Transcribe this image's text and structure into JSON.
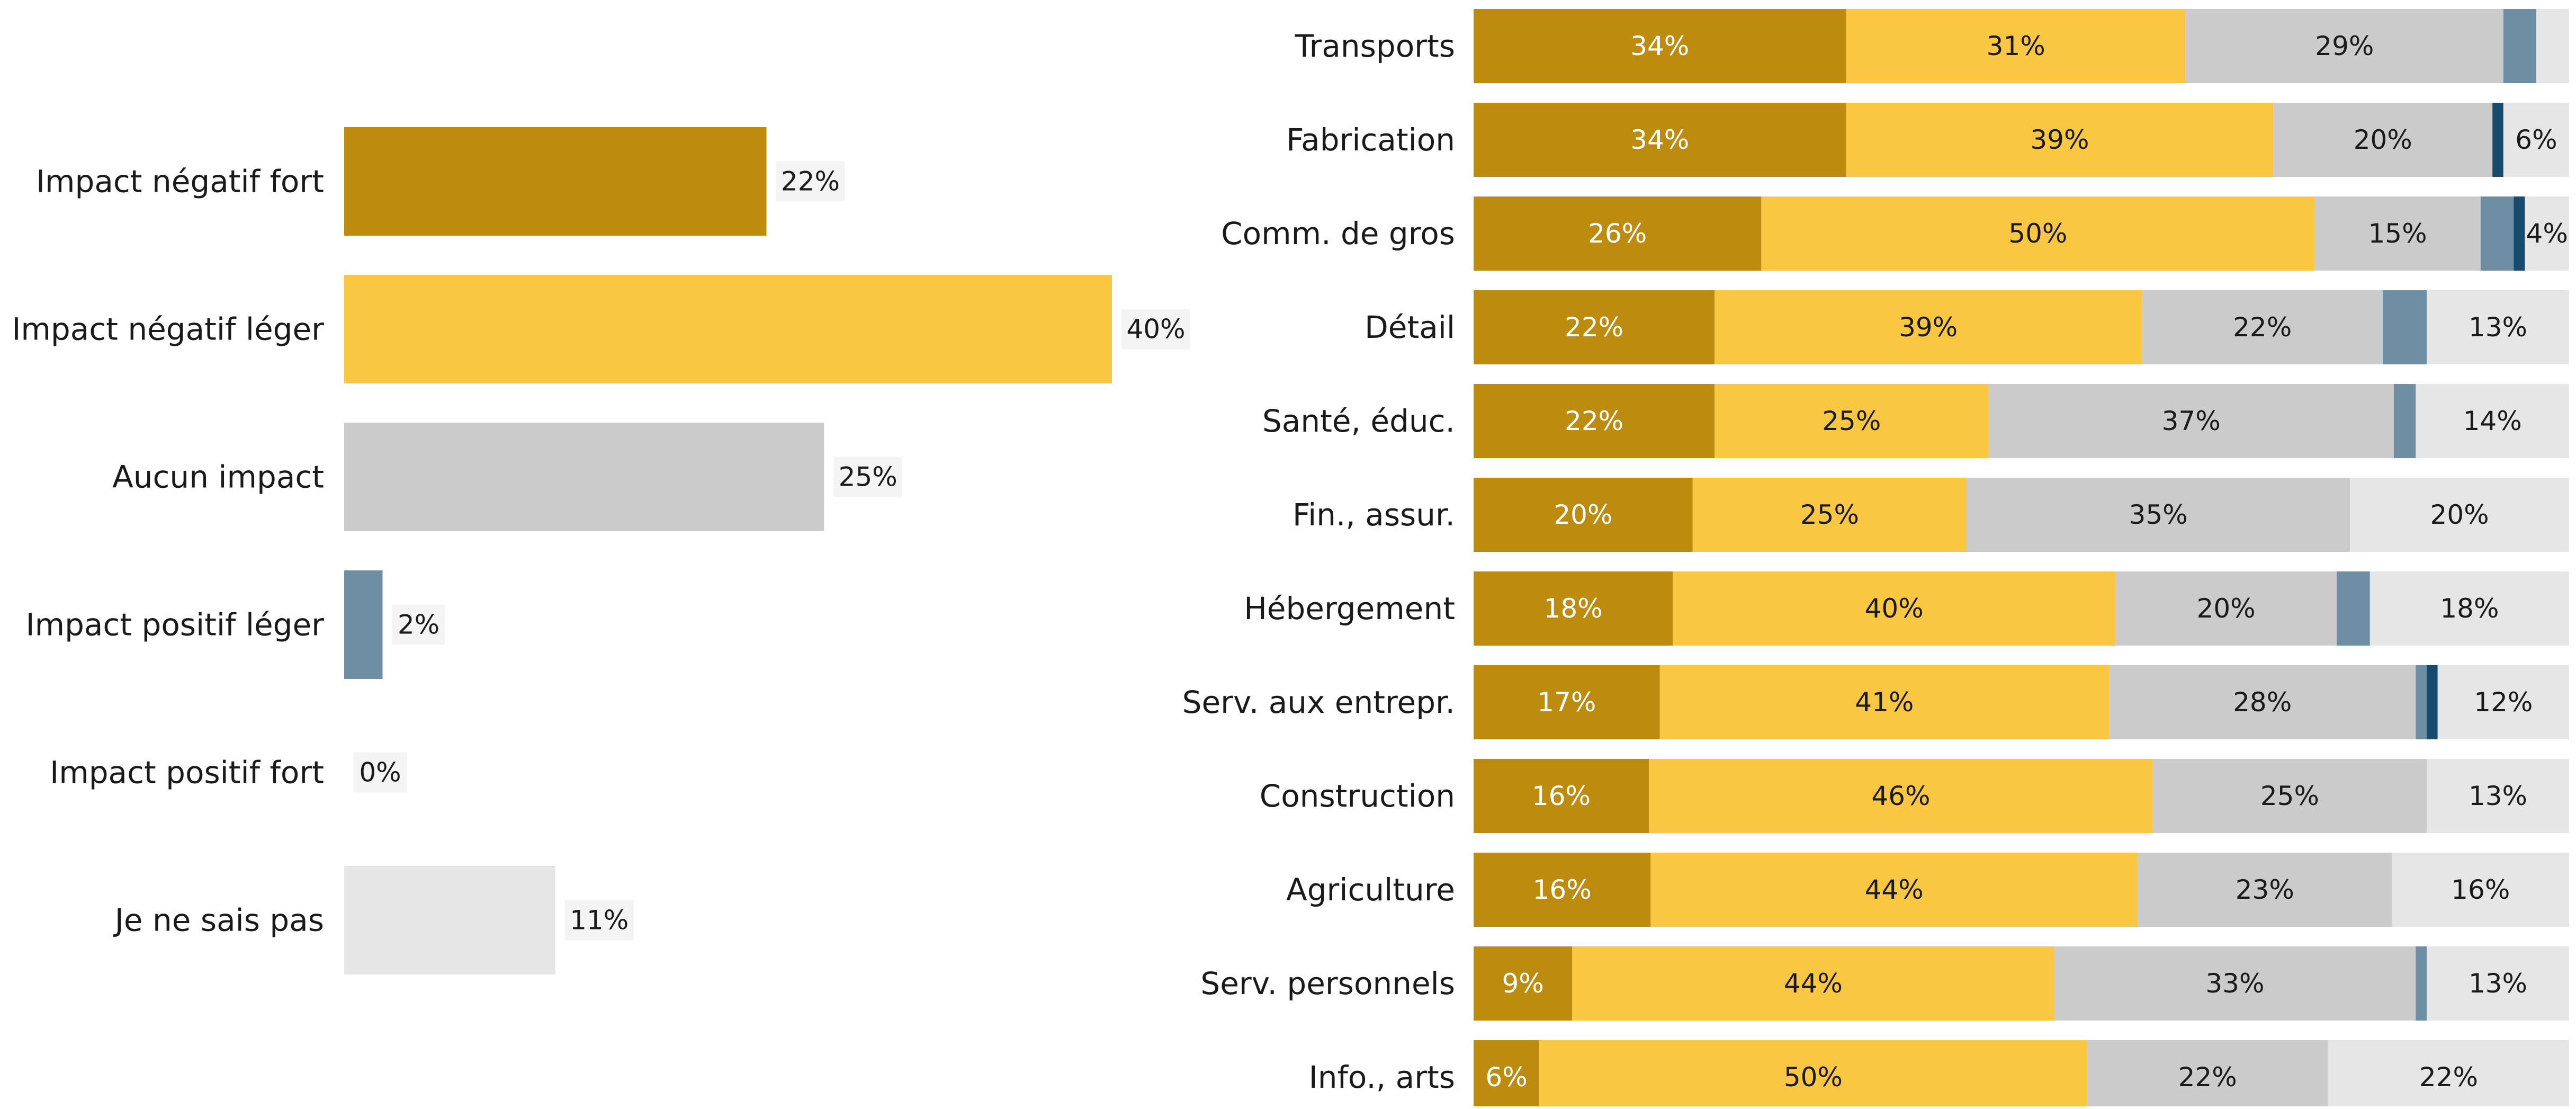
{
  "colors": {
    "strong_negative": "#bd8c0e",
    "light_negative": "#f9c741",
    "no_impact": "#cbcbcb",
    "light_positive": "#6d8ea3",
    "strong_positive": "#174b6e",
    "dont_know": "#e6e6e6"
  },
  "chart_data": [
    {
      "type": "bar",
      "orientation": "horizontal",
      "title": "",
      "xlabel": "",
      "ylabel": "",
      "categories": [
        "Impact négatif fort",
        "Impact négatif léger",
        "Aucun impact",
        "Impact positif léger",
        "Impact positif fort",
        "Je ne sais pas"
      ],
      "values": [
        22,
        40,
        25,
        2,
        0,
        11
      ],
      "labels": [
        "22%",
        "40%",
        "25%",
        "2%",
        "0%",
        "11%"
      ],
      "colors": [
        "#bd8c0e",
        "#f9c741",
        "#cbcbcb",
        "#6d8ea3",
        "#174b6e",
        "#e6e6e6"
      ],
      "xlim": [
        0,
        40
      ],
      "grid": false
    },
    {
      "type": "bar",
      "orientation": "horizontal",
      "stacked": true,
      "title": "",
      "xlabel": "",
      "ylabel": "",
      "categories": [
        "Transports",
        "Fabrication",
        "Comm. de gros",
        "Détail",
        "Santé, éduc.",
        "Fin., assur.",
        "Hébergement",
        "Serv. aux entrepr.",
        "Construction",
        "Agriculture",
        "Serv. personnels",
        "Info., arts"
      ],
      "series": [
        {
          "values": [
            34,
            34,
            26,
            22,
            22,
            20,
            18,
            17,
            16,
            16,
            9,
            6
          ],
          "labels": [
            "34%",
            "34%",
            "26%",
            "22%",
            "22%",
            "20%",
            "18%",
            "17%",
            "16%",
            "16%",
            "9%",
            "6%"
          ]
        },
        {
          "values": [
            31,
            39,
            50,
            39,
            25,
            25,
            40,
            41,
            46,
            44,
            44,
            50
          ],
          "labels": [
            "31%",
            "39%",
            "50%",
            "39%",
            "25%",
            "25%",
            "40%",
            "41%",
            "46%",
            "44%",
            "44%",
            "50%"
          ]
        },
        {
          "values": [
            29,
            20,
            15,
            22,
            37,
            35,
            20,
            28,
            25,
            23,
            33,
            22
          ],
          "labels": [
            "29%",
            "20%",
            "15%",
            "22%",
            "37%",
            "35%",
            "20%",
            "28%",
            "25%",
            "23%",
            "33%",
            "22%"
          ]
        },
        {
          "values": [
            3,
            0,
            3,
            4,
            2,
            0,
            3,
            1,
            0,
            0,
            1,
            0
          ],
          "labels": [
            "",
            "",
            "",
            "",
            "",
            "",
            "",
            "",
            "",
            "",
            "",
            ""
          ]
        },
        {
          "values": [
            0,
            1,
            1,
            0,
            0,
            0,
            0,
            1,
            0,
            0,
            0,
            0
          ],
          "labels": [
            "",
            "",
            "",
            "",
            "",
            "",
            "",
            "",
            "",
            "",
            "",
            ""
          ]
        },
        {
          "values": [
            3,
            6,
            4,
            13,
            14,
            20,
            18,
            12,
            13,
            16,
            13,
            22
          ],
          "labels": [
            "",
            "6%",
            "4%",
            "13%",
            "14%",
            "20%",
            "18%",
            "12%",
            "13%",
            "16%",
            "13%",
            "22%"
          ]
        }
      ],
      "series_colors": [
        "#bd8c0e",
        "#f9c741",
        "#cbcbcb",
        "#6d8ea3",
        "#174b6e",
        "#e6e6e6"
      ],
      "xlim": [
        0,
        100
      ],
      "grid": false
    }
  ]
}
